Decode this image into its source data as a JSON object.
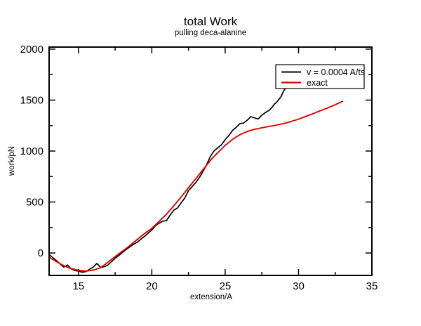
{
  "title": "total Work",
  "subtitle": "pulling deca-alanine",
  "colors": {
    "background": "#ffffff",
    "frame": "#000000",
    "series_sim": "#000000",
    "series_exact": "#e00000",
    "legend_border": "#000000",
    "legend_fill": "#ffffff"
  },
  "chart_data": {
    "type": "line",
    "title": "total Work",
    "subtitle": "pulling deca-alanine",
    "xlabel": "extension/A",
    "ylabel": "work/pN",
    "xlim": [
      13,
      35
    ],
    "ylim": [
      -220,
      2020
    ],
    "x_major_ticks": [
      15,
      20,
      25,
      30,
      35
    ],
    "x_minor_ticks": [
      17.5,
      22.5,
      27.5,
      32.5
    ],
    "y_major_ticks": [
      0,
      500,
      1000,
      1500,
      2000
    ],
    "y_minor_ticks": [
      250,
      750,
      1250,
      1750
    ],
    "x_tick_labels": [
      "15",
      "20",
      "25",
      "30",
      "35"
    ],
    "y_tick_labels": [
      "0",
      "500",
      "1000",
      "1500",
      "2000"
    ],
    "grid": false,
    "legend_position": "top-right",
    "series": [
      {
        "name": "v = 0.0004 A/ts",
        "color": "#000000",
        "width": 1.7,
        "x": [
          13.0,
          13.25,
          13.5,
          13.75,
          14.0,
          14.25,
          14.5,
          14.75,
          15.0,
          15.25,
          15.5,
          15.75,
          16.0,
          16.25,
          16.5,
          16.75,
          17.0,
          17.25,
          17.5,
          17.75,
          18.0,
          18.25,
          18.5,
          18.75,
          19.0,
          19.25,
          19.5,
          19.75,
          20.0,
          20.25,
          20.5,
          20.75,
          21.0,
          21.25,
          21.5,
          21.75,
          22.0,
          22.25,
          22.5,
          22.75,
          23.0,
          23.25,
          23.5,
          23.75,
          24.0,
          24.25,
          24.5,
          24.75,
          25.0,
          25.25,
          25.5,
          25.75,
          26.0,
          26.25,
          26.5,
          26.75,
          27.0,
          27.25,
          27.5,
          27.75,
          28.0,
          28.2,
          28.35,
          28.5,
          28.65,
          28.8,
          28.9,
          29.0,
          29.1
        ],
        "y": [
          -15,
          -45,
          -75,
          -108,
          -138,
          -118,
          -155,
          -172,
          -178,
          -188,
          -183,
          -160,
          -138,
          -103,
          -140,
          -136,
          -118,
          -85,
          -52,
          -25,
          5,
          35,
          60,
          85,
          105,
          135,
          162,
          195,
          225,
          268,
          292,
          312,
          318,
          372,
          420,
          442,
          492,
          540,
          612,
          652,
          692,
          742,
          802,
          872,
          950,
          1002,
          1032,
          1062,
          1112,
          1152,
          1202,
          1232,
          1268,
          1275,
          1302,
          1338,
          1325,
          1315,
          1352,
          1378,
          1400,
          1430,
          1460,
          1478,
          1505,
          1533,
          1563,
          1593,
          1612
        ]
      },
      {
        "name": "exact",
        "color": "#e00000",
        "width": 1.9,
        "x": [
          13.0,
          13.5,
          14.0,
          14.5,
          15.0,
          15.5,
          16.0,
          16.5,
          17.0,
          17.5,
          18.0,
          18.5,
          19.0,
          19.5,
          20.0,
          20.5,
          21.0,
          21.5,
          22.0,
          22.5,
          23.0,
          23.5,
          24.0,
          24.5,
          25.0,
          25.5,
          26.0,
          26.5,
          27.0,
          27.5,
          28.0,
          28.5,
          29.0,
          29.5,
          30.0,
          30.5,
          31.0,
          31.5,
          32.0,
          32.5,
          33.0
        ],
        "y": [
          -40,
          -85,
          -125,
          -153,
          -170,
          -178,
          -168,
          -145,
          -92,
          -35,
          18,
          72,
          132,
          190,
          242,
          310,
          380,
          462,
          550,
          640,
          730,
          818,
          910,
          985,
          1055,
          1115,
          1160,
          1192,
          1213,
          1228,
          1242,
          1255,
          1270,
          1290,
          1313,
          1340,
          1368,
          1396,
          1424,
          1455,
          1488
        ]
      }
    ]
  }
}
